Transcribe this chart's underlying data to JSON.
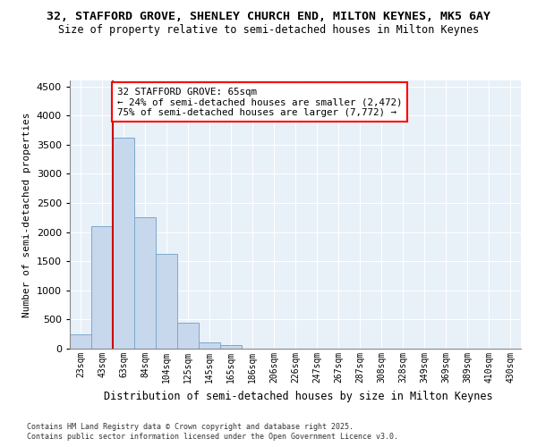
{
  "title_line1": "32, STAFFORD GROVE, SHENLEY CHURCH END, MILTON KEYNES, MK5 6AY",
  "title_line2": "Size of property relative to semi-detached houses in Milton Keynes",
  "xlabel": "Distribution of semi-detached houses by size in Milton Keynes",
  "ylabel": "Number of semi-detached properties",
  "categories": [
    "23sqm",
    "43sqm",
    "63sqm",
    "84sqm",
    "104sqm",
    "125sqm",
    "145sqm",
    "165sqm",
    "186sqm",
    "206sqm",
    "226sqm",
    "247sqm",
    "267sqm",
    "287sqm",
    "308sqm",
    "328sqm",
    "349sqm",
    "369sqm",
    "389sqm",
    "410sqm",
    "430sqm"
  ],
  "values": [
    250,
    2100,
    3620,
    2250,
    1620,
    450,
    100,
    55,
    0,
    0,
    0,
    0,
    0,
    0,
    0,
    0,
    0,
    0,
    0,
    0,
    0
  ],
  "bar_color": "#c8d8ec",
  "bar_edge_color": "#7aa8cc",
  "property_bin_index": 2,
  "line_color": "#cc0000",
  "ylim_max": 4600,
  "yticks": [
    0,
    500,
    1000,
    1500,
    2000,
    2500,
    3000,
    3500,
    4000,
    4500
  ],
  "annotation_title": "32 STAFFORD GROVE: 65sqm",
  "annotation_line2": "← 24% of semi-detached houses are smaller (2,472)",
  "annotation_line3": "75% of semi-detached houses are larger (7,772) →",
  "footnote1": "Contains HM Land Registry data © Crown copyright and database right 2025.",
  "footnote2": "Contains public sector information licensed under the Open Government Licence v3.0.",
  "fig_bg_color": "#ffffff",
  "plot_bg_color": "#e8f0f8"
}
